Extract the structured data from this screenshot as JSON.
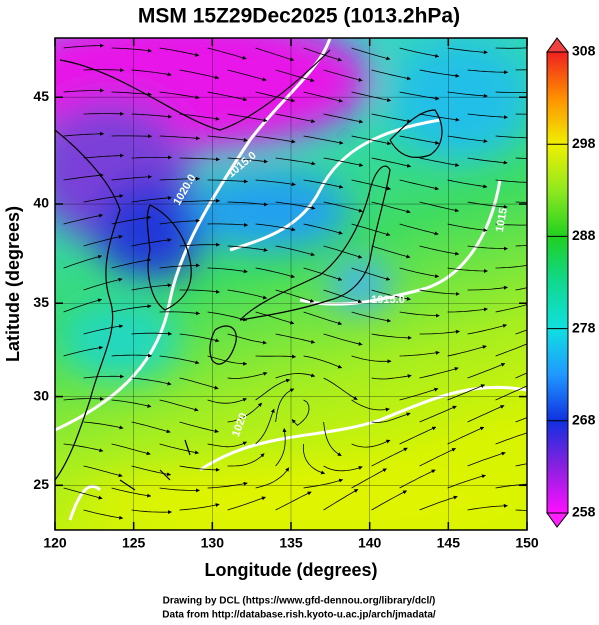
{
  "title": "MSM 15Z29Dec2025 (1013.2hPa)",
  "map": {
    "xlabel": "Longitude (degrees)",
    "ylabel": "Latitude  (degrees)",
    "xlim": [
      120,
      150
    ],
    "ylim": [
      22.4,
      47.6
    ],
    "xticks": [
      120,
      125,
      130,
      135,
      140,
      145,
      150
    ],
    "yticks": [
      25,
      30,
      35,
      40,
      45
    ],
    "contour_labels": [
      "1020.0",
      "1015.0",
      "1015.0",
      "1020",
      "1015"
    ]
  },
  "colorbar": {
    "lim": [
      258,
      308
    ],
    "ticks": [
      258,
      268,
      278,
      288,
      298,
      308
    ]
  },
  "credits": [
    "Drawing by DCL (https://www.gfd-dennou.org/library/dcl/)",
    "Data from http://database.rish.kyoto-u.ac.jp/arch/jmadata/"
  ]
}
